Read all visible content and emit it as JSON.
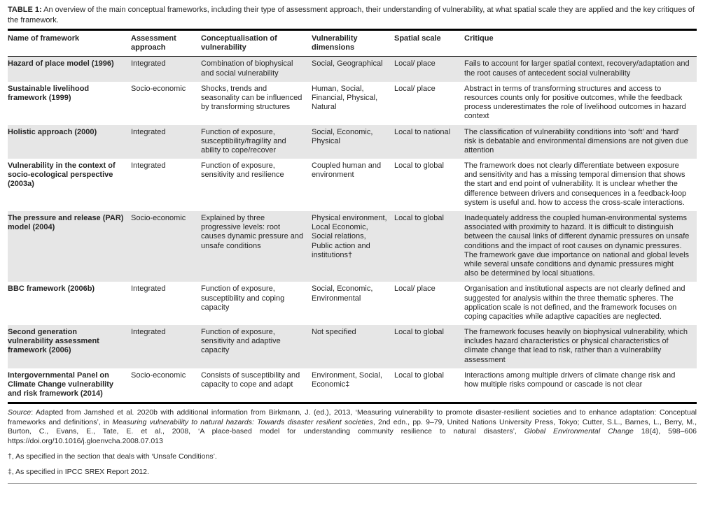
{
  "colors": {
    "row_shade": "#e6e6e6",
    "rule": "#000000",
    "text": "#262626"
  },
  "table": {
    "label": "TABLE 1:",
    "caption": "An overview of the main conceptual frameworks, including their type of assessment approach, their understanding of vulnerability, at what spatial scale they are applied and the key critiques of the framework.",
    "columns": [
      "Name of framework",
      "Assessment approach",
      "Conceptualisation of vulnerability",
      "Vulnerability dimensions",
      "Spatial scale",
      "Critique"
    ],
    "rows": [
      {
        "name": "Hazard of place model (1996)",
        "approach": "Integrated",
        "conceptualisation": "Combination of biophysical and social vulnerability",
        "dimensions": "Social, Geographical",
        "scale": "Local/ place",
        "critique": "Fails to account for larger spatial context, recovery/adaptation and the root causes of antecedent social vulnerability"
      },
      {
        "name": "Sustainable livelihood framework (1999)",
        "approach": "Socio-economic",
        "conceptualisation": "Shocks, trends and seasonality can be influenced by transforming structures",
        "dimensions": "Human, Social, Financial, Physical, Natural",
        "scale": "Local/ place",
        "critique": "Abstract in terms of transforming structures and access to resources counts only for positive outcomes, while the feedback process underestimates the role of livelihood outcomes in hazard context"
      },
      {
        "name": "Holistic approach (2000)",
        "approach": "Integrated",
        "conceptualisation": "Function of exposure, susceptibility/fragility and ability to cope/recover",
        "dimensions": "Social, Economic, Physical",
        "scale": "Local to national",
        "critique": "The classification of vulnerability conditions into ‘soft’ and ‘hard’ risk is debatable and environmental dimensions are not given due attention"
      },
      {
        "name": "Vulnerability in the context of socio-ecological perspective (2003a)",
        "approach": "Integrated",
        "conceptualisation": "Function of exposure, sensitivity and resilience",
        "dimensions": "Coupled human and environment",
        "scale": "Local to global",
        "critique": "The framework does not clearly differentiate between exposure and sensitivity and has a missing temporal dimension that shows the start and end point of vulnerability. It is unclear whether the difference between drivers and consequences in a feedback-loop system is useful and. how to access the cross-scale interactions."
      },
      {
        "name": "The pressure and release (PAR) model (2004)",
        "approach": "Socio-economic",
        "conceptualisation": "Explained by three progressive levels: root causes dynamic pressure and unsafe conditions",
        "dimensions": "Physical environment, Local Economic, Social relations, Public action and institutions†",
        "scale": "Local to global",
        "critique": "Inadequately address the coupled human-environmental systems associated with proximity to hazard. It is difficult to distinguish between the causal links of different dynamic pressures on unsafe conditions and the impact of root causes on dynamic pressures. The framework gave due importance on national and global levels while several unsafe conditions and dynamic pressures might also be determined by local situations."
      },
      {
        "name": "BBC framework (2006b)",
        "approach": "Integrated",
        "conceptualisation": "Function of exposure, susceptibility and coping capacity",
        "dimensions": "Social, Economic, Environmental",
        "scale": "Local/ place",
        "critique": "Organisation and institutional aspects are not clearly defined and suggested for analysis within the three thematic spheres. The application scale is not defined, and the framework focuses on coping capacities while adaptive capacities are neglected."
      },
      {
        "name": "Second generation vulnerability assessment framework (2006)",
        "approach": "Integrated",
        "conceptualisation": "Function of exposure, sensitivity and adaptive capacity",
        "dimensions": "Not specified",
        "scale": "Local to global",
        "critique": "The framework focuses heavily on biophysical vulnerability, which includes hazard characteristics or physical characteristics of climate change that lead to risk, rather than a vulnerability assessment"
      },
      {
        "name": "Intergovernmental Panel on Climate Change vulnerability and risk framework (2014)",
        "approach": "Socio-economic",
        "conceptualisation": "Consists of susceptibility and capacity to cope and adapt",
        "dimensions": "Environment, Social, Economic‡",
        "scale": "Local to global",
        "critique": "Interactions among multiple drivers of climate change risk and how multiple risks compound or cascade is not clear"
      }
    ],
    "source_segments": [
      {
        "text": "Source",
        "italic": true
      },
      {
        "text": ": Adapted from Jamshed et al. 2020b with additional information from Birkmann, J. (ed.), 2013, ‘Measuring vulnerability to promote disaster-resilient societies and to enhance adaptation: Conceptual frameworks and definitions’, in ",
        "italic": false
      },
      {
        "text": "Measuring vulnerability to natural hazards: Towards disaster resilient societies",
        "italic": true
      },
      {
        "text": ", 2nd edn., pp. 9–79, United Nations University Press, Tokyo; Cutter, S.L., Barnes, L., Berry, M., Burton, C., Evans, E., Tate, E. et al., 2008, ‘A place-based model for understanding community resilience to natural disasters’, ",
        "italic": false
      },
      {
        "text": "Global Environmental Change",
        "italic": true
      },
      {
        "text": " 18(4), 598–606 https://doi.org/10.1016/j.gloenvcha.2008.07.013",
        "italic": false
      }
    ],
    "footnotes": [
      "†, As specified in the section that deals with ‘Unsafe Conditions’.",
      "‡, As specified in IPCC SREX Report 2012."
    ]
  }
}
